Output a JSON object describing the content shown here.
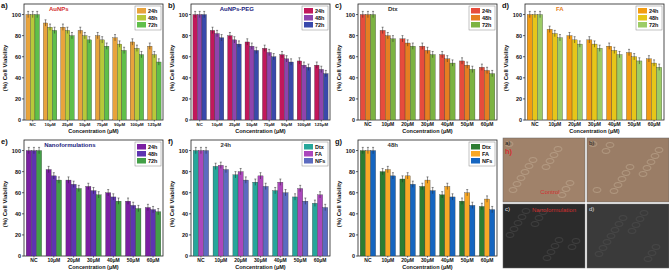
{
  "chart_data": [
    {
      "type": "bar",
      "panel": "a)",
      "title": "AuNPs",
      "y_label": "(%) Cell Viability",
      "x_label": "Concentration (μM)",
      "categories": [
        "NC",
        "10μM",
        "25μM",
        "50μM",
        "75μM",
        "90μM",
        "100μM",
        "125μM"
      ],
      "ylim": [
        0,
        110
      ],
      "yticks": [
        0,
        20,
        40,
        60,
        80,
        100
      ],
      "legend": "top-right",
      "series": [
        {
          "name": "24h",
          "color": "#e8a33c",
          "values": [
            100,
            92,
            88,
            85,
            80,
            78,
            74,
            70
          ],
          "errors": [
            3,
            3,
            3,
            3,
            3,
            3,
            3,
            3
          ]
        },
        {
          "name": "48h",
          "color": "#b7c93a",
          "values": [
            100,
            88,
            85,
            80,
            76,
            72,
            68,
            62
          ],
          "errors": [
            3,
            3,
            3,
            3,
            3,
            3,
            3,
            3
          ]
        },
        {
          "name": "72h",
          "color": "#5fbf4a",
          "values": [
            100,
            85,
            80,
            76,
            70,
            66,
            62,
            55
          ],
          "errors": [
            3,
            3,
            3,
            3,
            3,
            3,
            3,
            3
          ]
        }
      ]
    },
    {
      "type": "bar",
      "panel": "b)",
      "title": "AuNPs-PEG",
      "y_label": "(%) Cell Viability",
      "x_label": "Concentration (μM)",
      "categories": [
        "NC",
        "10μM",
        "25μM",
        "50μM",
        "75μM",
        "90μM",
        "100μM",
        "125μM"
      ],
      "ylim": [
        0,
        110
      ],
      "yticks": [
        0,
        20,
        40,
        60,
        80,
        100
      ],
      "legend": "top-right",
      "series": [
        {
          "name": "24h",
          "color": "#c2185b",
          "values": [
            100,
            85,
            80,
            74,
            68,
            62,
            56,
            52
          ],
          "errors": [
            3,
            3,
            3,
            3,
            3,
            3,
            3,
            3
          ]
        },
        {
          "name": "48h",
          "color": "#8e44ad",
          "values": [
            100,
            82,
            76,
            70,
            64,
            58,
            52,
            48
          ],
          "errors": [
            3,
            3,
            3,
            3,
            3,
            3,
            3,
            3
          ]
        },
        {
          "name": "72h",
          "color": "#3949ab",
          "values": [
            100,
            78,
            72,
            66,
            60,
            55,
            50,
            44
          ],
          "errors": [
            3,
            3,
            3,
            3,
            3,
            3,
            3,
            3
          ]
        }
      ]
    },
    {
      "type": "bar",
      "panel": "c)",
      "title": "Dtx",
      "y_label": "(%) Cell Viability",
      "x_label": "Concentration (μM)",
      "categories": [
        "NC",
        "10μM",
        "20μM",
        "30μM",
        "40μM",
        "50μM",
        "60μM"
      ],
      "ylim": [
        0,
        110
      ],
      "yticks": [
        0,
        20,
        40,
        60,
        80,
        100
      ],
      "legend": "top-right",
      "series": [
        {
          "name": "24h",
          "color": "#e74c3c",
          "values": [
            100,
            85,
            77,
            70,
            62,
            56,
            50
          ],
          "errors": [
            3,
            3,
            3,
            3,
            3,
            3,
            3
          ]
        },
        {
          "name": "48h",
          "color": "#e67e22",
          "values": [
            100,
            80,
            73,
            66,
            58,
            52,
            47
          ],
          "errors": [
            3,
            3,
            3,
            3,
            3,
            3,
            3
          ]
        },
        {
          "name": "72h",
          "color": "#7cb342",
          "values": [
            100,
            77,
            70,
            62,
            54,
            48,
            44
          ],
          "errors": [
            3,
            3,
            3,
            3,
            3,
            3,
            3
          ]
        }
      ]
    },
    {
      "type": "bar",
      "panel": "d)",
      "title": "FA",
      "y_label": "(%) Cell Viability",
      "x_label": "Concentration (μM)",
      "categories": [
        "NC",
        "10μM",
        "20μM",
        "30μM",
        "40μM",
        "50μM",
        "60μM"
      ],
      "ylim": [
        0,
        110
      ],
      "yticks": [
        0,
        20,
        40,
        60,
        80,
        100
      ],
      "legend": "top-right",
      "series": [
        {
          "name": "24h",
          "color": "#f39c12",
          "values": [
            100,
            86,
            80,
            76,
            70,
            64,
            58
          ],
          "errors": [
            3,
            3,
            3,
            3,
            3,
            3,
            3
          ]
        },
        {
          "name": "48h",
          "color": "#e6c619",
          "values": [
            100,
            82,
            76,
            72,
            66,
            60,
            54
          ],
          "errors": [
            3,
            3,
            3,
            3,
            3,
            3,
            3
          ]
        },
        {
          "name": "72h",
          "color": "#9ccc65",
          "values": [
            100,
            78,
            72,
            68,
            62,
            56,
            50
          ],
          "errors": [
            3,
            3,
            3,
            3,
            3,
            3,
            3
          ]
        }
      ]
    },
    {
      "type": "bar",
      "panel": "e)",
      "title": "Nanoformulations",
      "y_label": "(%) Cell Viability",
      "x_label": "Concentration (μM)",
      "categories": [
        "NC",
        "10μM",
        "20μM",
        "30μM",
        "40μM",
        "50μM",
        "60μM"
      ],
      "ylim": [
        0,
        110
      ],
      "yticks": [
        0,
        20,
        40,
        60,
        80,
        100
      ],
      "legend": "top-right",
      "series": [
        {
          "name": "24h",
          "color": "#7b1fa2",
          "values": [
            100,
            82,
            72,
            66,
            60,
            52,
            46
          ],
          "errors": [
            3,
            3,
            3,
            3,
            3,
            3,
            3
          ]
        },
        {
          "name": "48h",
          "color": "#5e35b1",
          "values": [
            100,
            76,
            68,
            62,
            56,
            48,
            44
          ],
          "errors": [
            3,
            3,
            3,
            3,
            3,
            3,
            3
          ]
        },
        {
          "name": "72h",
          "color": "#43a047",
          "values": [
            100,
            72,
            64,
            58,
            52,
            45,
            42
          ],
          "errors": [
            3,
            3,
            3,
            3,
            3,
            3,
            3
          ]
        }
      ]
    },
    {
      "type": "bar",
      "panel": "f)",
      "title": "24h",
      "y_label": "(%) Cell Viability",
      "x_label": "Concentration (μM)",
      "categories": [
        "NC",
        "10μM",
        "20μM",
        "30μM",
        "40μM",
        "50μM",
        "60μM"
      ],
      "ylim": [
        0,
        110
      ],
      "yticks": [
        0,
        20,
        40,
        60,
        80,
        100
      ],
      "legend": "top-right",
      "series": [
        {
          "name": "Dtx",
          "color": "#26a69a",
          "values": [
            100,
            85,
            77,
            70,
            62,
            56,
            50
          ],
          "errors": [
            3,
            3,
            3,
            3,
            3,
            3,
            3
          ]
        },
        {
          "name": "FA",
          "color": "#ab47bc",
          "values": [
            100,
            86,
            80,
            76,
            70,
            64,
            58
          ],
          "errors": [
            3,
            3,
            3,
            3,
            3,
            3,
            3
          ]
        },
        {
          "name": "NFs",
          "color": "#5c6bc0",
          "values": [
            100,
            82,
            72,
            66,
            60,
            52,
            46
          ],
          "errors": [
            3,
            3,
            3,
            3,
            3,
            3,
            3
          ]
        }
      ]
    },
    {
      "type": "bar",
      "panel": "g)",
      "title": "48h",
      "y_label": "(%) Cell Viability",
      "x_label": "Concentration (μM)",
      "categories": [
        "NC",
        "10μM",
        "20μM",
        "30μM",
        "40μM",
        "50μM",
        "60μM"
      ],
      "ylim": [
        0,
        110
      ],
      "yticks": [
        0,
        20,
        40,
        60,
        80,
        100
      ],
      "legend": "top-right",
      "series": [
        {
          "name": "Dtx",
          "color": "#2e7d32",
          "values": [
            100,
            80,
            73,
            66,
            58,
            52,
            47
          ],
          "errors": [
            3,
            3,
            3,
            3,
            3,
            3,
            3
          ]
        },
        {
          "name": "FA",
          "color": "#f9a825",
          "values": [
            100,
            82,
            76,
            72,
            66,
            60,
            54
          ],
          "errors": [
            3,
            3,
            3,
            3,
            3,
            3,
            3
          ]
        },
        {
          "name": "NFs",
          "color": "#1565c0",
          "values": [
            100,
            76,
            68,
            62,
            56,
            48,
            44
          ],
          "errors": [
            3,
            3,
            3,
            3,
            3,
            3,
            3
          ]
        }
      ]
    }
  ],
  "image_panel": {
    "panel": "h)",
    "images": [
      {
        "label": "a)",
        "caption": "Control"
      },
      {
        "label": "b)",
        "caption": null
      },
      {
        "label": "c)",
        "caption": "Nanoformulation"
      },
      {
        "label": "d)",
        "caption": null
      }
    ]
  }
}
